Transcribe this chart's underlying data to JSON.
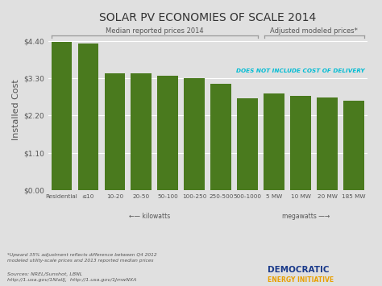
{
  "title": "SOLAR PV ECONOMIES OF SCALE 2014",
  "ylabel": "Installed Cost",
  "categories": [
    "Residential",
    "≤10",
    "10-20",
    "20-50",
    "50-100",
    "100-250",
    "250-500",
    "500-1000",
    "5 MW",
    "10 MW",
    "20 MW",
    "185 MW"
  ],
  "values": [
    4.36,
    4.33,
    3.45,
    3.45,
    3.38,
    3.3,
    3.13,
    2.71,
    2.84,
    2.77,
    2.73,
    2.63
  ],
  "bar_color": "#4a7a1e",
  "background_color": "#e0e0e0",
  "yticks": [
    0.0,
    1.1,
    2.2,
    3.3,
    4.4
  ],
  "ytick_labels": [
    "$0.00",
    "$1.10",
    "$2.20",
    "$3.30",
    "$4.40"
  ],
  "ylim": [
    0,
    4.72
  ],
  "median_label": "Median reported prices 2014",
  "adjusted_label": "Adjusted modeled prices*",
  "does_not_label": "DOES NOT INCLUDE COST OF DELIVERY",
  "does_not_color": "#00bcd4",
  "kilowatts_label": "←— kilowatts",
  "megawatts_label": "megawatts —→",
  "footnote": "*Upward 35% adjustment reflects difference between Q4 2012\nmodeled utility-scale prices and 2013 reported median prices",
  "sources": "Sources: NREL/Sunshot, LBNL\nhttp://1.usa.gov/1NlallJ,  http://1.usa.gov/1JmwNXA",
  "title_fontsize": 10,
  "ylabel_fontsize": 8,
  "tick_fontsize": 6.5,
  "annotation_fontsize": 6.0,
  "bracket_color": "#999999",
  "grid_color": "#ffffff",
  "text_color": "#555555"
}
